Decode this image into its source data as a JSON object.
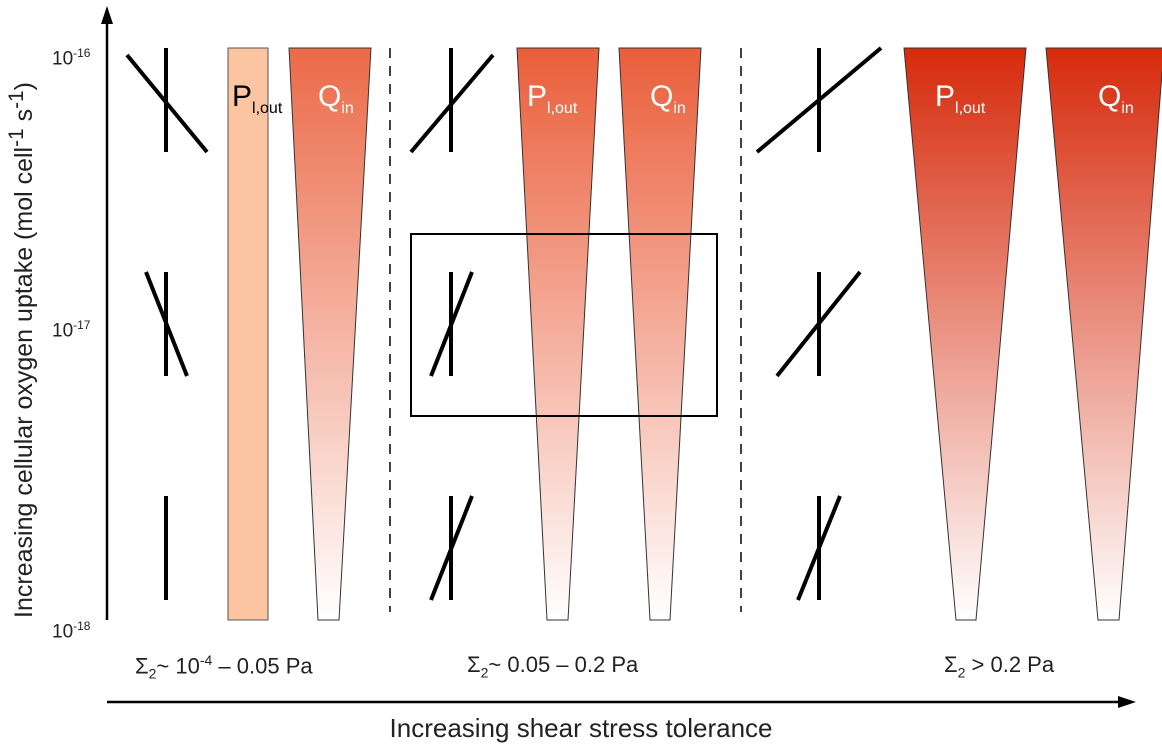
{
  "axis": {
    "y_label_main": "Increasing cellular oxygen uptake (mol cell",
    "y_label_sup1": "-1",
    "y_label_mid": " s",
    "y_label_sup2": "-1",
    "y_label_end": ")",
    "x_label": "Increasing shear stress tolerance",
    "y_ticks": [
      {
        "base": "10",
        "exp": "-16"
      },
      {
        "base": "10",
        "exp": "-17"
      },
      {
        "base": "10",
        "exp": "-18"
      }
    ]
  },
  "regions": [
    {
      "symbol": "Σ",
      "sub": "2",
      "text_pre": "~ 10",
      "sup": "-4",
      "text_post": " – 0.05 Pa"
    },
    {
      "symbol": "Σ",
      "sub": "2",
      "text": "~ 0.05 – 0.2 Pa"
    },
    {
      "symbol": "Σ",
      "sub": "2",
      "text": " > 0.2 Pa"
    }
  ],
  "labels": {
    "p_main": "P",
    "p_sub": "l,out",
    "q_main": "Q",
    "q_sub": "in"
  },
  "colors": {
    "bar_light": "#fcc5a2",
    "wedge_region1_top": "#eb6a48",
    "wedge_region2_top": "#ea5e3a",
    "wedge_region3_top": "#d62a0b",
    "label_light": "#ffffff",
    "label_dark": "#000000"
  }
}
